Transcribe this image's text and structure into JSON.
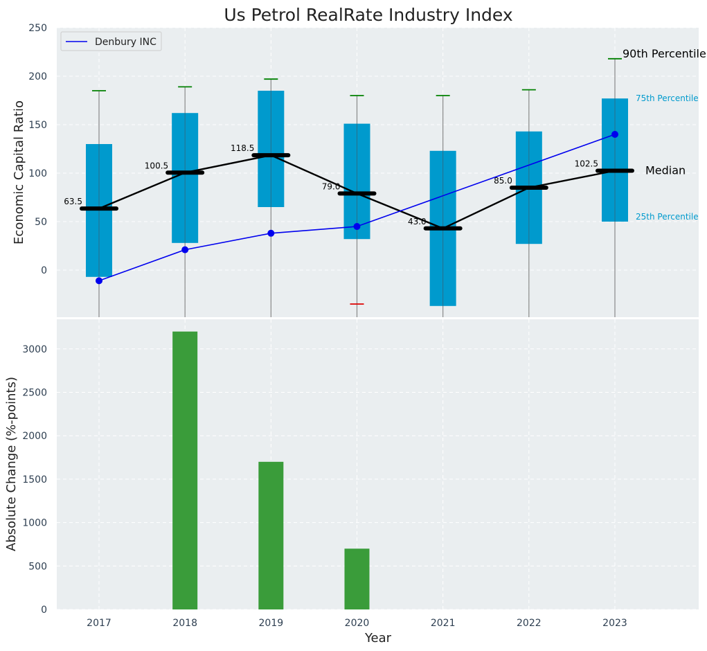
{
  "chart_data": [
    {
      "type": "box",
      "title": "Us Petrol RealRate Industry Index",
      "ylabel": "Economic Capital Ratio",
      "ylim": [
        -48,
        250
      ],
      "yticks": [
        0,
        50,
        100,
        150,
        200,
        250
      ],
      "categories": [
        "2017",
        "2018",
        "2019",
        "2020",
        "2021",
        "2022",
        "2023"
      ],
      "boxes": [
        {
          "year": "2017",
          "p25": -7,
          "median": 63.5,
          "p75": 130,
          "p90": 185,
          "low": null,
          "median_label": "63.5"
        },
        {
          "year": "2018",
          "p25": 28,
          "median": 100.5,
          "p75": 162,
          "p90": 189,
          "low": null,
          "median_label": "100.5"
        },
        {
          "year": "2019",
          "p25": 65,
          "median": 118.5,
          "p75": 185,
          "p90": 197,
          "low": null,
          "median_label": "118.5"
        },
        {
          "year": "2020",
          "p25": 32,
          "median": 79.0,
          "p75": 151,
          "p90": 180,
          "low": -35,
          "median_label": "79.0"
        },
        {
          "year": "2021",
          "p25": -37,
          "median": 43.0,
          "p75": 123,
          "p90": 180,
          "low": null,
          "median_label": "43.0"
        },
        {
          "year": "2022",
          "p25": 27,
          "median": 85.0,
          "p75": 143,
          "p90": 186,
          "low": null,
          "median_label": "85.0"
        },
        {
          "year": "2023",
          "p25": 50,
          "median": 102.5,
          "p75": 177,
          "p90": 218,
          "low": null,
          "median_label": "102.5"
        }
      ],
      "series": [
        {
          "name": "Denbury INC",
          "color": "#0000ee",
          "values": [
            -11,
            21,
            38,
            45,
            null,
            null,
            140
          ]
        }
      ],
      "legend": {
        "position": "top-left",
        "entries": [
          "Denbury INC"
        ]
      },
      "annotations": {
        "p90": "90th Percentile",
        "p75": "75th Percentile",
        "median": "Median",
        "p25": "25th Percentile"
      },
      "colors": {
        "box": "#009acd",
        "median": "#000000",
        "whisker_cap": "#008000",
        "low_cap": "#dd0000",
        "series": "#0000ee",
        "annotation_accent": "#009acd"
      }
    },
    {
      "type": "bar",
      "xlabel": "Year",
      "ylabel": "Absolute Change (%-points)",
      "categories": [
        "2017",
        "2018",
        "2019",
        "2020",
        "2021",
        "2022",
        "2023"
      ],
      "values": [
        0,
        3200,
        1700,
        700,
        0,
        0,
        0
      ],
      "ylim": [
        0,
        3350
      ],
      "yticks": [
        0,
        500,
        1000,
        1500,
        2000,
        2500,
        3000
      ],
      "color": "#3a9c3a"
    }
  ]
}
